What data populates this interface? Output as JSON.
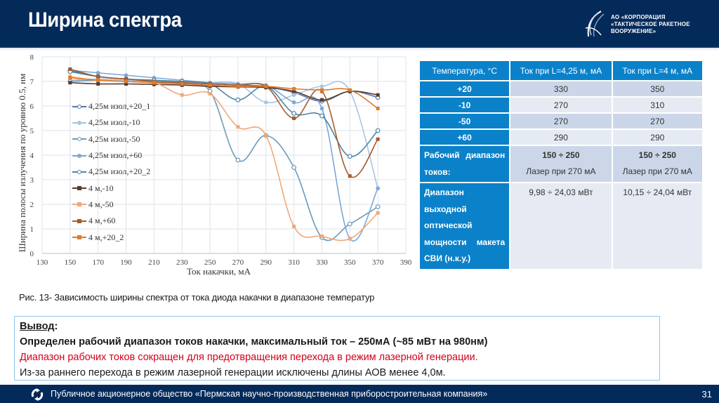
{
  "header": {
    "title": "Ширина спектра",
    "logo_lines": [
      "АО «КОРПОРАЦИЯ",
      "«ТАКТИЧЕСКОЕ РАКЕТНОЕ",
      "ВООРУЖЕНИЕ»"
    ]
  },
  "colors": {
    "header_bg": "#042a5a",
    "table_header": "#0b81c9",
    "table_dark_row": "#cbd7e8",
    "table_light_row": "#e6ebf3",
    "conclusion_border": "#8ec8ea",
    "red_text": "#d4001a"
  },
  "chart_data": {
    "type": "line",
    "title": "",
    "xlabel": "Ток накачки, мА",
    "ylabel": "Ширина полосы излучения по уровню 0.5, нм",
    "xlim": [
      130,
      390
    ],
    "ylim": [
      0,
      8
    ],
    "x_ticks": [
      130,
      150,
      170,
      190,
      210,
      230,
      250,
      270,
      290,
      310,
      330,
      350,
      370,
      390
    ],
    "y_ticks": [
      0,
      1,
      2,
      3,
      4,
      5,
      6,
      7,
      8
    ],
    "grid": true,
    "legend_position": "inside-left",
    "x": [
      150,
      170,
      190,
      210,
      230,
      250,
      270,
      290,
      310,
      330,
      350,
      370
    ],
    "series": [
      {
        "name": "4,25м изол,+20_1",
        "color": "#5a76a8",
        "marker": "circle-open",
        "values": [
          7.45,
          7.2,
          7.1,
          7.0,
          6.95,
          6.9,
          6.85,
          6.8,
          6.55,
          6.2,
          6.6,
          6.35
        ]
      },
      {
        "name": "4,25м изол,-10",
        "color": "#a9c4e4",
        "marker": "circle",
        "values": [
          7.05,
          7.1,
          7.05,
          7.0,
          6.98,
          6.95,
          6.9,
          6.15,
          6.45,
          6.8,
          6.6,
          2.65
        ]
      },
      {
        "name": "4,25м изол,-50",
        "color": "#6d9ab8",
        "marker": "circle-open",
        "values": [
          7.0,
          7.05,
          7.0,
          6.95,
          6.92,
          6.6,
          3.8,
          4.8,
          3.5,
          0.65,
          1.2,
          1.9
        ]
      },
      {
        "name": "4,25м изол,+60",
        "color": "#7ea6d8",
        "marker": "circle",
        "values": [
          7.45,
          7.35,
          7.25,
          7.15,
          7.05,
          6.95,
          6.9,
          6.85,
          6.15,
          5.9,
          0.6,
          2.65
        ]
      },
      {
        "name": "4,25м изол,+20_2",
        "color": "#4a87a8",
        "marker": "circle-open",
        "values": [
          7.4,
          7.2,
          7.1,
          7.05,
          7.0,
          6.9,
          6.25,
          6.8,
          5.7,
          5.6,
          3.95,
          5.0
        ]
      },
      {
        "name": "4 м,-10",
        "color": "#5a3a30",
        "marker": "square",
        "values": [
          6.95,
          6.9,
          6.9,
          6.88,
          6.85,
          6.8,
          6.78,
          6.75,
          6.6,
          6.25,
          6.6,
          6.45
        ]
      },
      {
        "name": "4 м,-50",
        "color": "#f0a878",
        "marker": "square",
        "values": [
          7.2,
          7.05,
          7.0,
          6.95,
          6.45,
          6.5,
          5.15,
          4.8,
          1.1,
          0.7,
          0.6,
          1.65
        ]
      },
      {
        "name": "4 м,+60",
        "color": "#a55a2c",
        "marker": "square",
        "values": [
          7.5,
          7.2,
          7.1,
          7.0,
          6.95,
          6.9,
          6.85,
          6.8,
          5.5,
          6.6,
          3.15,
          4.65
        ]
      },
      {
        "name": "4 м,+20_2",
        "color": "#e07b28",
        "marker": "square",
        "values": [
          7.15,
          7.05,
          7.0,
          6.95,
          6.9,
          6.85,
          6.8,
          6.8,
          6.7,
          6.65,
          6.65,
          5.9
        ]
      }
    ]
  },
  "table": {
    "headers": [
      "Температура, °С",
      "Ток при L=4,25 м, мА",
      "Ток при L=4 м, мА"
    ],
    "rows": [
      [
        "+20",
        "330",
        "350"
      ],
      [
        "-10",
        "270",
        "310"
      ],
      [
        "-50",
        "270",
        "270"
      ],
      [
        "+60",
        "290",
        "290"
      ]
    ],
    "range_row": {
      "label_lines": [
        "Рабочий диапазон",
        "токов:"
      ],
      "c1_bold": "150 ÷ 250",
      "c1_note": "Лазер при 270 мА",
      "c2_bold": "150 ÷ 250",
      "c2_note": "Лазер при 270 мА"
    },
    "power_row": {
      "label_lines": [
        "Диапазон",
        "выходной",
        "оптической",
        "мощности макета",
        "СВИ (н.к.у.)"
      ],
      "c1": "9,98 ÷ 24,03 мВт",
      "c2": "10,15 ÷ 24,04 мВт"
    }
  },
  "caption": "Рис. 13- Зависимость ширины спектра от тока диода накачки в диапазоне температур",
  "conclusion": {
    "title": "Вывод",
    "colon": ":",
    "line1": "Определен рабочий диапазон токов накачки, максимальный ток – 250мА (~85 мВт на 980нм)",
    "line2": "Диапазон рабочих токов сокращен для предотвращения перехода в режим лазерной генерации.",
    "line3": "Из-за раннего перехода в режим лазерной генерации исключены длины АОВ менее 4,0м."
  },
  "footer": {
    "text": "Публичное акционерное общество «Пермская научно-производственная приборостроительная компания»",
    "page_number": "31"
  }
}
